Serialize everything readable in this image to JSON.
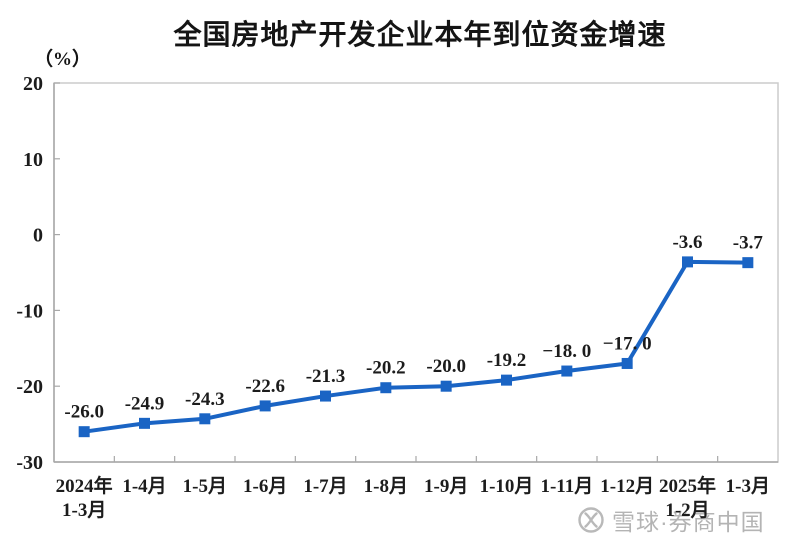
{
  "chart_data": {
    "type": "line",
    "title": "全国房地产开发企业本年到位资金增速",
    "unit": "（%）",
    "categories": [
      [
        "2024年",
        "1-3月"
      ],
      [
        "1-4月"
      ],
      [
        "1-5月"
      ],
      [
        "1-6月"
      ],
      [
        "1-7月"
      ],
      [
        "1-8月"
      ],
      [
        "1-9月"
      ],
      [
        "1-10月"
      ],
      [
        "1-11月"
      ],
      [
        "1-12月"
      ],
      [
        "2025年",
        "1-2月"
      ],
      [
        "1-3月"
      ]
    ],
    "values": [
      -26.0,
      -24.9,
      -24.3,
      -22.6,
      -21.3,
      -20.2,
      -20.0,
      -19.2,
      -18.0,
      -17.0,
      -3.6,
      -3.7
    ],
    "data_labels": [
      "-26.0",
      "-24.9",
      "-24.3",
      "-22.6",
      "-21.3",
      "-20.2",
      "-20.0",
      "-19.2",
      "−18. 0",
      "−17. 0",
      "-3.6",
      "-3.7"
    ],
    "yticks": [
      20,
      10,
      0,
      -10,
      -20,
      -30
    ],
    "ylim": [
      -30,
      20
    ],
    "xlabel": "",
    "ylabel": "（%）",
    "grid": false,
    "legend": null,
    "line_color": "#1a64c4",
    "marker": "square",
    "axis_color": "#a8a8a8",
    "border_color": "#cccccc",
    "text_color": "#1c1c1c"
  },
  "watermark": {
    "text": "雪球·券商中国",
    "icon": "xueqiu-logo-icon",
    "color": "#b4b4b4"
  }
}
